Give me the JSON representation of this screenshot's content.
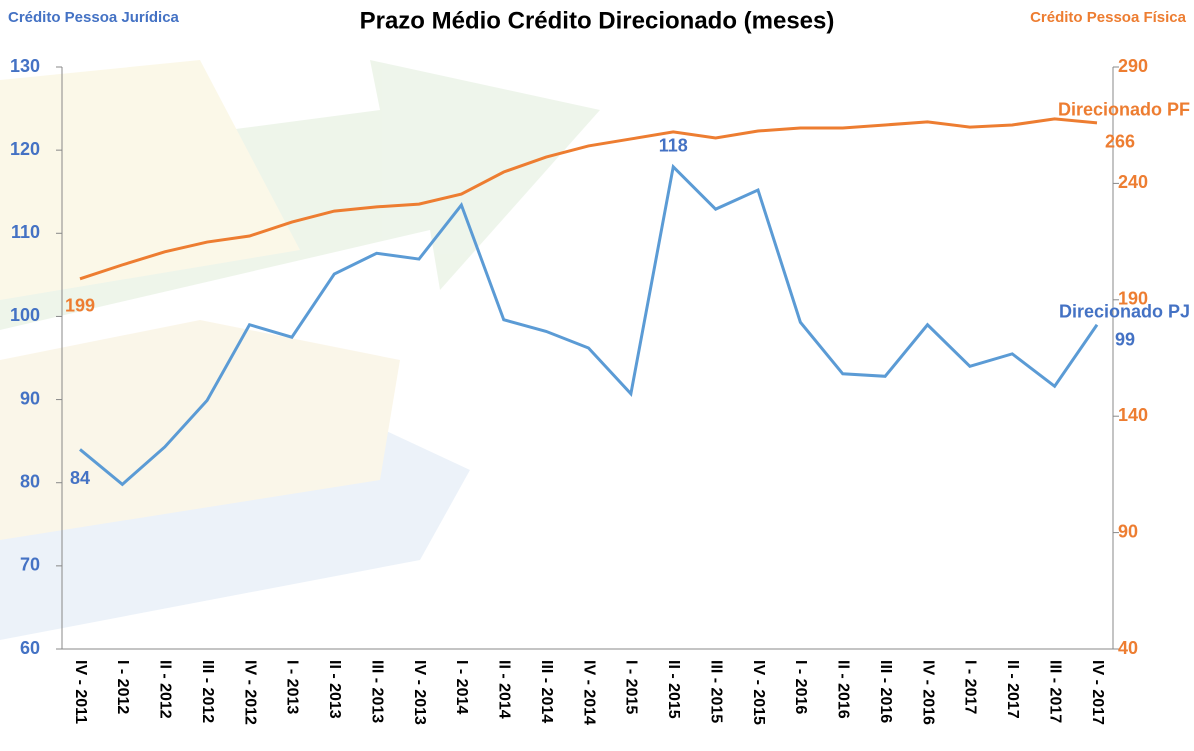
{
  "chart_data": {
    "type": "line",
    "title": "Prazo Médio Crédito Direcionado (meses)",
    "ylabel": "Crédito Pessoa Jurídica",
    "y2label": "Crédito Pessoa Física",
    "categories": [
      "IV - 2011",
      "I - 2012",
      "II - 2012",
      "III - 2012",
      "IV - 2012",
      "I - 2013",
      "II - 2013",
      "III - 2013",
      "IV - 2013",
      "I - 2014",
      "II - 2014",
      "III - 2014",
      "IV - 2014",
      "I - 2015",
      "II - 2015",
      "III - 2015",
      "IV - 2015",
      "I - 2016",
      "II - 2016",
      "III - 2016",
      "IV - 2016",
      "I - 2017",
      "II - 2017",
      "III - 2017",
      "IV - 2017"
    ],
    "ylim": [
      60,
      130
    ],
    "yticks": [
      60,
      70,
      80,
      90,
      100,
      110,
      120,
      130
    ],
    "y2lim": [
      40,
      290
    ],
    "y2ticks": [
      40,
      90,
      140,
      190,
      240,
      290
    ],
    "grid": false,
    "series": [
      {
        "name": "Direcionado PJ",
        "color": "#5b9bd5",
        "label_color": "#4472c4",
        "values": [
          84,
          79.8,
          84.3,
          89.9,
          99.0,
          97.5,
          105.1,
          107.6,
          106.9,
          113.4,
          99.6,
          98.2,
          96.2,
          90.7,
          118,
          112.9,
          115.2,
          99.3,
          93.1,
          92.8,
          99.0,
          94.0,
          95.5,
          91.6,
          99
        ],
        "value_labels": [
          "84",
          null,
          null,
          null,
          null,
          null,
          null,
          null,
          null,
          null,
          null,
          null,
          null,
          null,
          "118",
          null,
          null,
          null,
          null,
          null,
          null,
          null,
          null,
          null,
          "99"
        ]
      },
      {
        "name": "Direcionado PF",
        "color": "#ed7d31",
        "axis": "y2",
        "values": [
          199,
          205,
          210.6,
          214.8,
          217.4,
          223.4,
          228.1,
          229.9,
          231.1,
          235.4,
          244.9,
          251.3,
          256.1,
          259.1,
          262.1,
          259.5,
          262.5,
          263.8,
          263.8,
          265.1,
          266.4,
          264.2,
          265.1,
          267.7,
          266
        ],
        "value_labels": [
          "199",
          null,
          null,
          null,
          null,
          null,
          null,
          null,
          null,
          null,
          null,
          null,
          null,
          null,
          null,
          null,
          null,
          null,
          null,
          null,
          null,
          null,
          null,
          null,
          "266"
        ]
      }
    ]
  }
}
